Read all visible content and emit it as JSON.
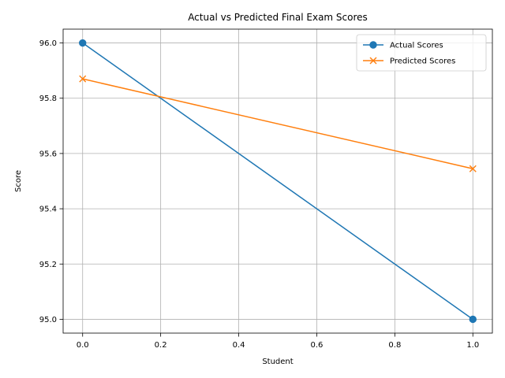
{
  "chart_data": {
    "type": "line",
    "title": "Actual vs Predicted Final Exam Scores",
    "xlabel": "Student",
    "ylabel": "Score",
    "x": [
      0,
      1
    ],
    "xlim": [
      -0.05,
      1.05
    ],
    "ylim": [
      94.95,
      96.05
    ],
    "xticks": [
      0.0,
      0.2,
      0.4,
      0.6,
      0.8,
      1.0
    ],
    "xtick_labels": [
      "0.0",
      "0.2",
      "0.4",
      "0.6",
      "0.8",
      "1.0"
    ],
    "yticks": [
      95.0,
      95.2,
      95.4,
      95.6,
      95.8,
      96.0
    ],
    "ytick_labels": [
      "95.0",
      "95.2",
      "95.4",
      "95.6",
      "95.8",
      "96.0"
    ],
    "grid": true,
    "legend_position": "top-right",
    "series": [
      {
        "name": "Actual Scores",
        "values": [
          96.0,
          95.0
        ],
        "color": "#1f77b4",
        "marker": "circle"
      },
      {
        "name": "Predicted Scores",
        "values": [
          95.87,
          95.545
        ],
        "color": "#ff7f0e",
        "marker": "x"
      }
    ]
  }
}
